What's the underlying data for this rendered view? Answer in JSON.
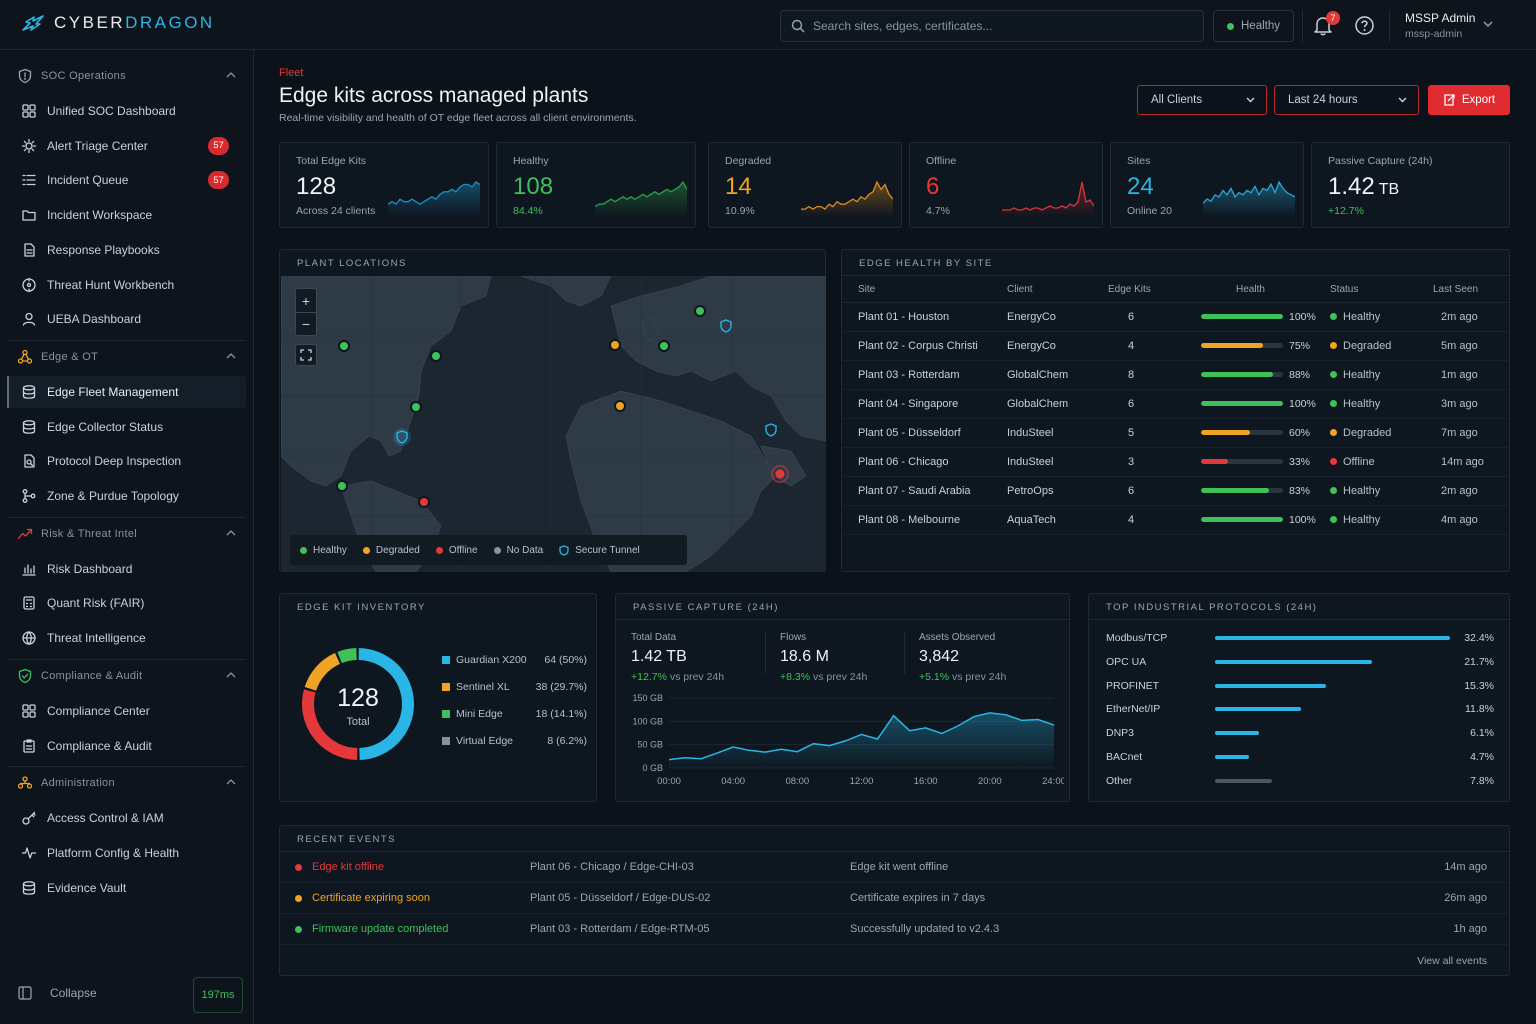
{
  "app": {
    "brand_a": "CYBER",
    "brand_b": "DRAGON",
    "accent": "#29b6e6"
  },
  "search": {
    "placeholder": "Search sites, edges, certificates..."
  },
  "status": {
    "label": "Healthy",
    "color": "#3ec15a"
  },
  "notifications": {
    "count": "7"
  },
  "user": {
    "name": "MSSP Admin",
    "role": "mssp-admin"
  },
  "sidebar": {
    "sections": [
      {
        "label": "SOC Operations",
        "icon": "shield-icon",
        "items": [
          {
            "label": "Unified SOC Dashboard",
            "icon": "grid-icon"
          },
          {
            "label": "Alert Triage Center",
            "icon": "gear-alert-icon",
            "badge": "57"
          },
          {
            "label": "Incident Queue",
            "icon": "list-icon",
            "badge": "57"
          },
          {
            "label": "Incident Workspace",
            "icon": "folder-icon"
          },
          {
            "label": "Response Playbooks",
            "icon": "document-icon"
          },
          {
            "label": "Threat Hunt Workbench",
            "icon": "target-icon"
          },
          {
            "label": "UEBA Dashboard",
            "icon": "user-icon"
          }
        ]
      },
      {
        "label": "Edge & OT",
        "icon": "nodes-icon",
        "items": [
          {
            "label": "Edge Fleet Management",
            "icon": "database-icon",
            "active": true
          },
          {
            "label": "Edge Collector Status",
            "icon": "database-icon"
          },
          {
            "label": "Protocol Deep Inspection",
            "icon": "inspect-icon"
          },
          {
            "label": "Zone & Purdue Topology",
            "icon": "topology-icon"
          }
        ]
      },
      {
        "label": "Risk & Threat Intel",
        "icon": "trend-icon",
        "items": [
          {
            "label": "Risk Dashboard",
            "icon": "bar-chart-icon"
          },
          {
            "label": "Quant Risk (FAIR)",
            "icon": "calculator-icon"
          },
          {
            "label": "Threat Intelligence",
            "icon": "globe-icon"
          }
        ]
      },
      {
        "label": "Compliance & Audit",
        "icon": "shield-check-icon",
        "items": [
          {
            "label": "Compliance Center",
            "icon": "grid-icon"
          },
          {
            "label": "Compliance & Audit",
            "icon": "clipboard-icon"
          }
        ]
      },
      {
        "label": "Administration",
        "icon": "admin-icon",
        "items": [
          {
            "label": "Access Control & IAM",
            "icon": "key-icon"
          },
          {
            "label": "Platform Config & Health",
            "icon": "pulse-icon"
          },
          {
            "label": "Evidence Vault",
            "icon": "database-icon"
          }
        ]
      }
    ],
    "collapse_label": "Collapse",
    "latency": "197ms"
  },
  "header": {
    "breadcrumb": "Fleet",
    "title": "Edge kits across managed plants",
    "subtitle": "Real-time visibility and health of OT edge fleet across all client environments.",
    "client_filter": "All Clients",
    "time_filter": "Last 24 hours",
    "export_label": "Export"
  },
  "kpis": [
    {
      "label": "Total Edge Kits",
      "value": "128",
      "sub": "Across 24 clients",
      "color": "#eef3f7",
      "sub_color": "#9aa6b2",
      "spark_color": "#1e8fbf",
      "spark": [
        4,
        5,
        4,
        6,
        5,
        5,
        6,
        5,
        4,
        5,
        6,
        7,
        6,
        8,
        9,
        9,
        10,
        9,
        11,
        12,
        12,
        11,
        13,
        12
      ]
    },
    {
      "label": "Healthy",
      "value": "108",
      "sub": "84.4%",
      "color": "#3ec15a",
      "sub_color": "#3ec15a",
      "spark_color": "#2e9e48",
      "spark": [
        3,
        4,
        4,
        5,
        6,
        5,
        6,
        7,
        6,
        7,
        6,
        7,
        8,
        7,
        8,
        9,
        8,
        9,
        10,
        9,
        10,
        11,
        13,
        10
      ]
    },
    {
      "label": "Degraded",
      "value": "14",
      "sub": "10.9%",
      "color": "#f0a325",
      "sub_color": "#9aa6b2",
      "spark_color": "#d98c1c",
      "spark": [
        2,
        2,
        3,
        2,
        3,
        3,
        2,
        4,
        3,
        5,
        4,
        4,
        5,
        6,
        5,
        7,
        6,
        8,
        9,
        13,
        10,
        12,
        8,
        6
      ]
    },
    {
      "label": "Offline",
      "value": "6",
      "sub": "4.7%",
      "color": "#e5383b",
      "sub_color": "#9aa6b2",
      "spark_color": "#d9333a",
      "spark": [
        2,
        2,
        2,
        3,
        2,
        2,
        3,
        2,
        3,
        3,
        2,
        3,
        4,
        3,
        3,
        4,
        3,
        5,
        4,
        6,
        16,
        6,
        7,
        4
      ]
    },
    {
      "label": "Sites",
      "value": "24",
      "sub": "Online 20",
      "color": "#29b6e6",
      "sub_color": "#9aa6b2",
      "spark_color": "#2aa6d6",
      "spark": [
        5,
        7,
        6,
        9,
        8,
        11,
        9,
        12,
        8,
        10,
        9,
        11,
        10,
        13,
        9,
        12,
        11,
        14,
        10,
        15,
        12,
        10,
        9,
        8
      ]
    },
    {
      "label": "Passive Capture (24h)",
      "value": "1.42",
      "unit": "TB",
      "sub": "+12.7%",
      "color": "#eef3f7",
      "sub_color": "#3ec15a",
      "spark_color": "#1e8fbf",
      "spark": []
    }
  ],
  "map": {
    "title": "PLANT LOCATIONS",
    "legend": [
      {
        "label": "Healthy",
        "color": "#3ec15a"
      },
      {
        "label": "Degraded",
        "color": "#f0a325"
      },
      {
        "label": "Offline",
        "color": "#e5383b"
      },
      {
        "label": "No Data",
        "color": "#8793a0"
      },
      {
        "label": "Secure Tunnel",
        "color": "#29b6e6"
      }
    ]
  },
  "edge_health": {
    "title": "EDGE HEALTH BY SITE",
    "columns": [
      "Site",
      "Client",
      "Edge Kits",
      "Health",
      "Status",
      "Last Seen"
    ],
    "rows": [
      {
        "site": "Plant 01 - Houston",
        "client": "EnergyCo",
        "kits": "6",
        "health": 100,
        "health_label": "100%",
        "status": "Healthy",
        "last": "2m ago"
      },
      {
        "site": "Plant 02 - Corpus Christi",
        "client": "EnergyCo",
        "kits": "4",
        "health": 75,
        "health_label": "75%",
        "status": "Degraded",
        "last": "5m ago"
      },
      {
        "site": "Plant 03 - Rotterdam",
        "client": "GlobalChem",
        "kits": "8",
        "health": 88,
        "health_label": "88%",
        "status": "Healthy",
        "last": "1m ago"
      },
      {
        "site": "Plant 04 - Singapore",
        "client": "GlobalChem",
        "kits": "6",
        "health": 100,
        "health_label": "100%",
        "status": "Healthy",
        "last": "3m ago"
      },
      {
        "site": "Plant 05 - Düsseldorf",
        "client": "InduSteel",
        "kits": "5",
        "health": 60,
        "health_label": "60%",
        "status": "Degraded",
        "last": "7m ago"
      },
      {
        "site": "Plant 06 - Chicago",
        "client": "InduSteel",
        "kits": "3",
        "health": 33,
        "health_label": "33%",
        "status": "Offline",
        "last": "14m ago"
      },
      {
        "site": "Plant 07 - Saudi Arabia",
        "client": "PetroOps",
        "kits": "6",
        "health": 83,
        "health_label": "83%",
        "status": "Healthy",
        "last": "2m ago"
      },
      {
        "site": "Plant 08 - Melbourne",
        "client": "AquaTech",
        "kits": "4",
        "health": 100,
        "health_label": "100%",
        "status": "Healthy",
        "last": "4m ago"
      }
    ]
  },
  "inventory": {
    "title": "EDGE KIT INVENTORY",
    "total": "128",
    "total_label": "Total",
    "items": [
      {
        "label": "Guardian X200",
        "value": "64 (50%)",
        "count": 64,
        "color": "#29b6e6"
      },
      {
        "label": "Sentinel XL",
        "value": "38 (29.7%)",
        "count": 38,
        "color": "#e5383b"
      },
      {
        "label": "Mini Edge",
        "value": "18 (14.1%)",
        "count": 18,
        "color": "#f0a325"
      },
      {
        "label": "Virtual Edge",
        "value": "8 (6.2%)",
        "count": 8,
        "color": "#3ec15a"
      }
    ],
    "legend_colors": [
      "#29b6e6",
      "#f0a325",
      "#3ec15a",
      "#8793a0"
    ]
  },
  "capture": {
    "title": "PASSIVE CAPTURE (24H)",
    "stats": [
      {
        "label": "Total Data",
        "value": "1.42 TB",
        "delta": "+12.7%",
        "delta_suffix": "vs prev 24h"
      },
      {
        "label": "Flows",
        "value": "18.6 M",
        "delta": "+8.3%",
        "delta_suffix": "vs prev 24h"
      },
      {
        "label": "Assets Observed",
        "value": "3,842",
        "delta": "+5.1%",
        "delta_suffix": "vs prev 24h"
      }
    ]
  },
  "chart_data": {
    "type": "area",
    "x": [
      "00:00",
      "01:00",
      "02:00",
      "03:00",
      "04:00",
      "05:00",
      "06:00",
      "07:00",
      "08:00",
      "09:00",
      "10:00",
      "11:00",
      "12:00",
      "13:00",
      "14:00",
      "15:00",
      "16:00",
      "17:00",
      "18:00",
      "19:00",
      "20:00",
      "21:00",
      "22:00",
      "23:00",
      "24:00"
    ],
    "values": [
      18,
      22,
      20,
      32,
      45,
      38,
      34,
      40,
      35,
      52,
      48,
      58,
      72,
      62,
      112,
      80,
      86,
      74,
      90,
      110,
      118,
      114,
      102,
      104,
      92
    ],
    "xticks": [
      "00:00",
      "04:00",
      "08:00",
      "12:00",
      "16:00",
      "20:00",
      "24:00"
    ],
    "yticks": [
      "150 GB",
      "100 GB",
      "50 GB",
      "0 GB"
    ],
    "ylim": [
      0,
      150
    ],
    "color": "#29b6e6"
  },
  "protocols": {
    "title": "TOP INDUSTRIAL PROTOCOLS (24H)",
    "items": [
      {
        "name": "Modbus/TCP",
        "pct": 32.4,
        "label": "32.4%"
      },
      {
        "name": "OPC UA",
        "pct": 21.7,
        "label": "21.7%"
      },
      {
        "name": "PROFINET",
        "pct": 15.3,
        "label": "15.3%"
      },
      {
        "name": "EtherNet/IP",
        "pct": 11.8,
        "label": "11.8%"
      },
      {
        "name": "DNP3",
        "pct": 6.1,
        "label": "6.1%"
      },
      {
        "name": "BACnet",
        "pct": 4.7,
        "label": "4.7%"
      },
      {
        "name": "Other",
        "pct": 7.8,
        "label": "7.8%"
      }
    ]
  },
  "events": {
    "title": "RECENT EVENTS",
    "rows": [
      {
        "type": "Edge kit offline",
        "location": "Plant 06 - Chicago / Edge-CHI-03",
        "message": "Edge kit went offline",
        "time": "14m ago",
        "color": "#e5383b"
      },
      {
        "type": "Certificate expiring soon",
        "location": "Plant 05 - Düsseldorf / Edge-DUS-02",
        "message": "Certificate expires in 7 days",
        "time": "26m ago",
        "color": "#f0a325"
      },
      {
        "type": "Firmware update completed",
        "location": "Plant 03 - Rotterdam / Edge-RTM-05",
        "message": "Successfully updated to v2.4.3",
        "time": "1h ago",
        "color": "#3ec15a"
      }
    ],
    "view_all": "View all events"
  }
}
